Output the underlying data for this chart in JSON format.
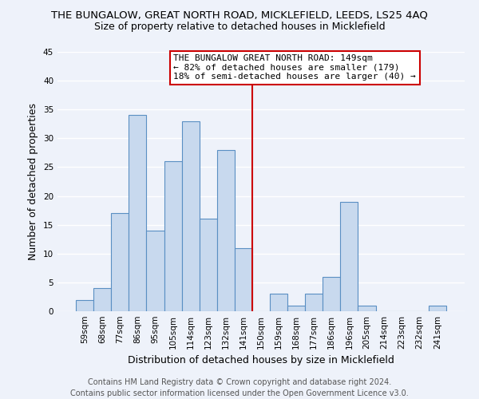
{
  "title": "THE BUNGALOW, GREAT NORTH ROAD, MICKLEFIELD, LEEDS, LS25 4AQ",
  "subtitle": "Size of property relative to detached houses in Micklefield",
  "xlabel": "Distribution of detached houses by size in Micklefield",
  "ylabel": "Number of detached properties",
  "bar_labels": [
    "59sqm",
    "68sqm",
    "77sqm",
    "86sqm",
    "95sqm",
    "105sqm",
    "114sqm",
    "123sqm",
    "132sqm",
    "141sqm",
    "150sqm",
    "159sqm",
    "168sqm",
    "177sqm",
    "186sqm",
    "196sqm",
    "205sqm",
    "214sqm",
    "223sqm",
    "232sqm",
    "241sqm"
  ],
  "bar_values": [
    2,
    4,
    17,
    34,
    14,
    26,
    33,
    16,
    28,
    11,
    0,
    3,
    1,
    3,
    6,
    19,
    1,
    0,
    0,
    0,
    1
  ],
  "bar_color": "#c8d9ee",
  "bar_edge_color": "#5a8fc3",
  "ylim": [
    0,
    45
  ],
  "yticks": [
    0,
    5,
    10,
    15,
    20,
    25,
    30,
    35,
    40,
    45
  ],
  "vline_x_index": 10,
  "vline_color": "#cc0000",
  "annotation_title": "THE BUNGALOW GREAT NORTH ROAD: 149sqm",
  "annotation_line1": "← 82% of detached houses are smaller (179)",
  "annotation_line2": "18% of semi-detached houses are larger (40) →",
  "footer_line1": "Contains HM Land Registry data © Crown copyright and database right 2024.",
  "footer_line2": "Contains public sector information licensed under the Open Government Licence v3.0.",
  "background_color": "#eef2fa",
  "grid_color": "#ffffff",
  "title_fontsize": 9.5,
  "subtitle_fontsize": 9,
  "axis_label_fontsize": 9,
  "tick_fontsize": 7.5,
  "annotation_fontsize": 8,
  "footer_fontsize": 7
}
